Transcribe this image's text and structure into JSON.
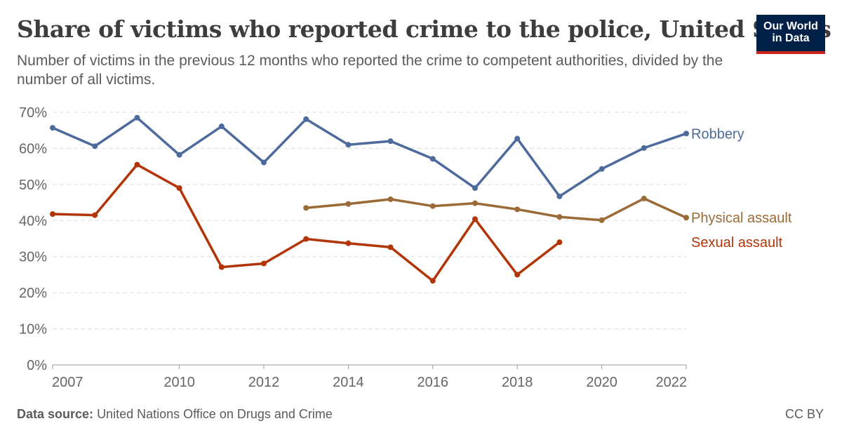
{
  "title": "Share of victims who reported crime to the police, United States",
  "subtitle": "Number of victims in the previous 12 months who reported the crime to competent authorities, divided by the number of all victims.",
  "logo": {
    "line1": "Our World",
    "line2": "in Data"
  },
  "footer": {
    "source_label": "Data source:",
    "source_text": "United Nations Office on Drugs and Crime",
    "license": "CC BY"
  },
  "chart_data": {
    "type": "line",
    "xlim": [
      2007,
      2022
    ],
    "ylim": [
      0,
      70
    ],
    "xticks": [
      2007,
      2010,
      2012,
      2014,
      2016,
      2018,
      2020,
      2022
    ],
    "yticks": [
      0,
      10,
      20,
      30,
      40,
      50,
      60,
      70
    ],
    "ytick_labels": [
      "0%",
      "10%",
      "20%",
      "30%",
      "40%",
      "50%",
      "60%",
      "70%"
    ],
    "grid": true,
    "series": [
      {
        "name": "Robbery",
        "color": "#4c6a9c",
        "x": [
          2007,
          2008,
          2009,
          2010,
          2011,
          2012,
          2013,
          2014,
          2015,
          2016,
          2017,
          2018,
          2019,
          2020,
          2021,
          2022
        ],
        "y": [
          65.7,
          60.6,
          68.5,
          58.2,
          66.1,
          56.1,
          68.1,
          61.0,
          62.0,
          57.1,
          49.0,
          62.7,
          46.7,
          54.3,
          60.1,
          64.1
        ]
      },
      {
        "name": "Physical assault",
        "color": "#9a6b36",
        "x": [
          2013,
          2014,
          2015,
          2016,
          2017,
          2018,
          2019,
          2020,
          2021,
          2022
        ],
        "y": [
          43.5,
          44.6,
          45.9,
          44.0,
          44.8,
          43.1,
          41.0,
          40.1,
          46.1,
          40.8
        ]
      },
      {
        "name": "Sexual assault",
        "color": "#b13507",
        "x": [
          2007,
          2008,
          2009,
          2010,
          2011,
          2012,
          2013,
          2014,
          2015,
          2016,
          2017,
          2018,
          2019
        ],
        "y": [
          41.8,
          41.5,
          55.5,
          49.0,
          27.1,
          28.1,
          34.9,
          33.7,
          32.6,
          23.3,
          40.4,
          25.0,
          34.0
        ]
      }
    ]
  }
}
